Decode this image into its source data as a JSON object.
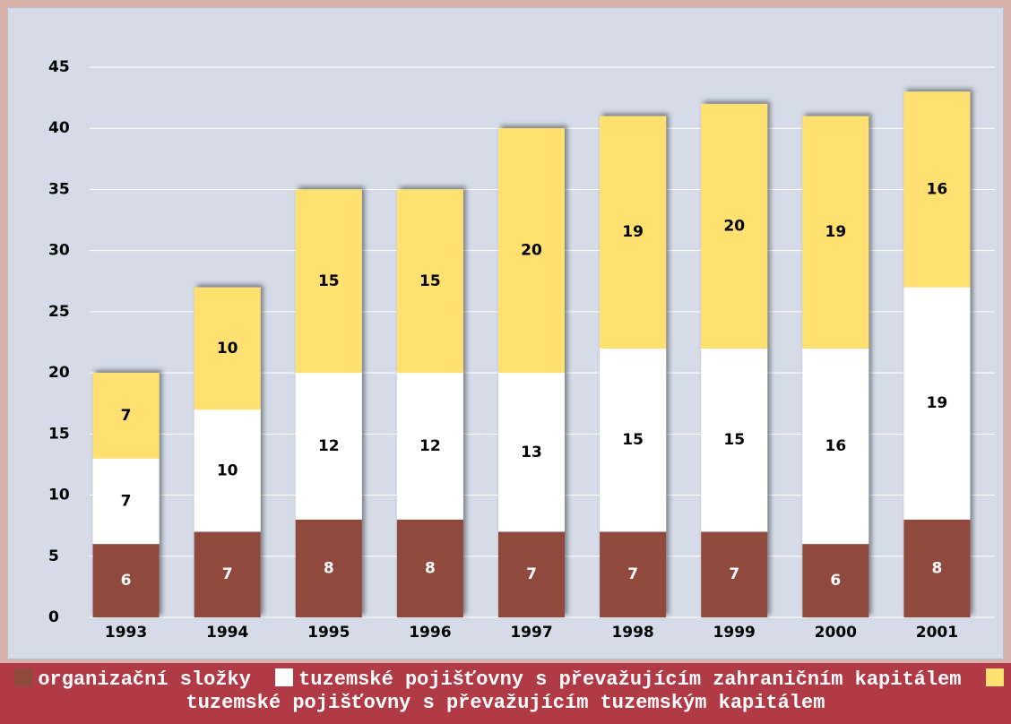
{
  "chart_data": {
    "type": "stacked_bar",
    "categories": [
      "1993",
      "1994",
      "1995",
      "1996",
      "1997",
      "1998",
      "1999",
      "2000",
      "2001"
    ],
    "series": [
      {
        "name": "organizační složky",
        "color": "#8f4a3e",
        "values": [
          6,
          7,
          8,
          8,
          7,
          7,
          7,
          6,
          8
        ]
      },
      {
        "name": "tuzemské pojišťovny s převažujícím zahraničním kapitálem",
        "color": "#ffffff",
        "values": [
          7,
          10,
          12,
          12,
          13,
          15,
          15,
          16,
          19
        ]
      },
      {
        "name": "tuzemské pojišťovny s převažujícím tuzemským kapitálem",
        "color": "#ffe070",
        "values": [
          7,
          10,
          15,
          15,
          20,
          19,
          20,
          19,
          16
        ]
      }
    ],
    "ylim": [
      0,
      45
    ],
    "yticks": [
      0,
      5,
      10,
      15,
      20,
      25,
      30,
      35,
      40,
      45
    ],
    "grid": true
  }
}
